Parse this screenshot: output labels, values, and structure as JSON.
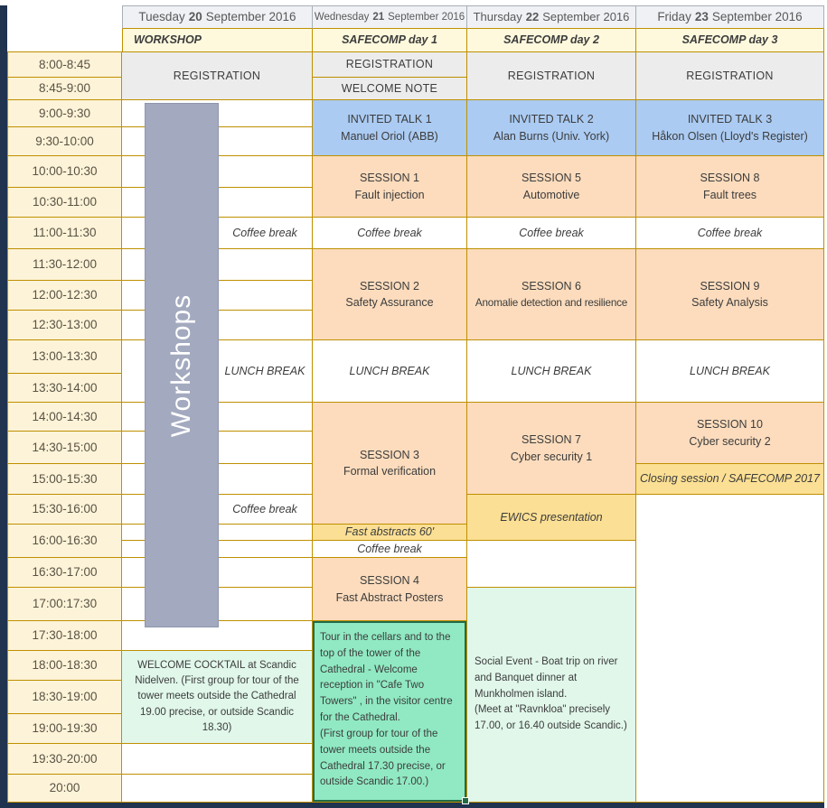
{
  "header": {
    "days": [
      {
        "name": "Tuesday",
        "num": "20",
        "rest": "September 2016",
        "track": "WORKSHOP"
      },
      {
        "name": "Wednesday",
        "num": "21",
        "rest": "September 2016",
        "track": "SAFECOMP day 1"
      },
      {
        "name": "Thursday",
        "num": "22",
        "rest": "September 2016",
        "track": "SAFECOMP day 2"
      },
      {
        "name": "Friday",
        "num": "23",
        "rest": "September 2016",
        "track": "SAFECOMP day 3"
      }
    ]
  },
  "times": [
    "8:00-8:45",
    "8:45-9:00",
    "9:00-9:30",
    "9:30-10:00",
    "10:00-10:30",
    "10:30-11:00",
    "11:00-11:30",
    "11:30-12:00",
    "12:00-12:30",
    "12:30-13:00",
    "13:00-13:30",
    "13:30-14:00",
    "14:00-14:30",
    "14:30-15:00",
    "15:00-15:30",
    "15:30-16:00",
    "16:00-16:30",
    "16:30-17:00",
    "17:00:17:30",
    "17:30-18:00",
    "18:00-18:30",
    "18:30-19:00",
    "19:00-19:30",
    "19:30-20:00",
    "20:00"
  ],
  "labels": {
    "registration": "REGISTRATION",
    "welcome_note": "WELCOME NOTE",
    "coffee_break": "Coffee break",
    "lunch_break": "LUNCH BREAK",
    "workshops": "Workshops"
  },
  "invited": [
    {
      "title": "INVITED TALK 1",
      "speaker": "Manuel Oriol (ABB)"
    },
    {
      "title": "INVITED TALK 2",
      "speaker": "Alan Burns (Univ. York)"
    },
    {
      "title": "INVITED TALK 3",
      "speaker": "Håkon Olsen (Lloyd's Register)"
    }
  ],
  "sessions": [
    {
      "title": "SESSION 1",
      "topic": "Fault injection"
    },
    {
      "title": "SESSION 2",
      "topic": "Safety Assurance"
    },
    {
      "title": "SESSION 3",
      "topic": "Formal verification"
    },
    {
      "title": "SESSION 4",
      "topic": "Fast Abstract Posters"
    },
    {
      "title": "SESSION 5",
      "topic": "Automotive"
    },
    {
      "title": "SESSION 6",
      "topic": "Anomalie detection and resilience"
    },
    {
      "title": "SESSION 7",
      "topic": "Cyber security 1"
    },
    {
      "title": "SESSION 8",
      "topic": "Fault trees"
    },
    {
      "title": "SESSION 9",
      "topic": "Safety Analysis"
    },
    {
      "title": "SESSION 10",
      "topic": "Cyber security 2"
    }
  ],
  "special": {
    "fast_abstracts": "Fast abstracts 60'",
    "ewics": "EWICS presentation",
    "closing": "Closing session /  SAFECOMP 2017"
  },
  "social": {
    "tuesday": "WELCOME COCKTAIL at Scandic\nNidelven. (First group for tour of the\ntower meets outside the Cathedral\n19.00 precise, or outside Scandic\n18.30)",
    "wednesday": "Tour in the cellars and to the\ntop of the tower of the\nCathedral - Welcome\nreception in \"Cafe Two\nTowers\" , in the visitor centre\nfor the Cathedral.\n(First group for tour of the\ntower meets outside the\nCathedral 17.30 precise, or\noutside Scandic 17.00.)",
    "thursday": "Social Event - Boat trip on river\nand Banquet dinner at\nMunkholmen island.\n(Meet at \"Ravnkloa\" precisely\n17.00, or 16.40 outside Scandic.)"
  },
  "colors": {
    "grid_border": "#bf9000",
    "invited_blue": "#abcbf2",
    "session_peach": "#fcdcbd",
    "event_yellow": "#fbdf94",
    "mint_strong": "#90e9c2",
    "mint_light": "#e0f7ea",
    "workshop_gray": "#a3aabf",
    "selection_green": "#216b47",
    "frame_navy": "#20334f"
  }
}
